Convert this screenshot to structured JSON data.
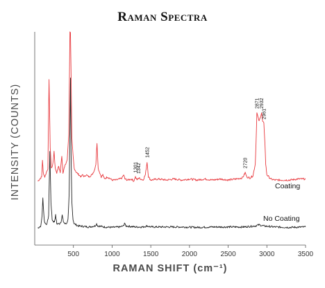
{
  "chart_data": {
    "type": "line",
    "title": "Raman Spectra",
    "xlabel": "RAMAN SHIFT (cm⁻¹)",
    "ylabel": "INTENSITY (COUNTS)",
    "xlim": [
      0,
      3500
    ],
    "ylim": [
      0,
      100
    ],
    "x_ticks": [
      500,
      1000,
      1500,
      2000,
      2500,
      3000,
      3500
    ],
    "y_ticks": [],
    "grid": false,
    "series": [
      {
        "name": "Coating",
        "color": "#e8383d",
        "baseline": 30,
        "points": [
          [
            40,
            30
          ],
          [
            90,
            32
          ],
          [
            100,
            40
          ],
          [
            110,
            34
          ],
          [
            130,
            32
          ],
          [
            150,
            34
          ],
          [
            170,
            36
          ],
          [
            185,
            78
          ],
          [
            200,
            46
          ],
          [
            215,
            36
          ],
          [
            235,
            38
          ],
          [
            250,
            44
          ],
          [
            265,
            36
          ],
          [
            285,
            34
          ],
          [
            310,
            37
          ],
          [
            330,
            34
          ],
          [
            350,
            42
          ],
          [
            365,
            34
          ],
          [
            380,
            36
          ],
          [
            400,
            38
          ],
          [
            420,
            40
          ],
          [
            440,
            52
          ],
          [
            455,
            100
          ],
          [
            462,
            100
          ],
          [
            470,
            80
          ],
          [
            480,
            50
          ],
          [
            495,
            42
          ],
          [
            510,
            36
          ],
          [
            540,
            34
          ],
          [
            570,
            33
          ],
          [
            600,
            32
          ],
          [
            620,
            33
          ],
          [
            640,
            32
          ],
          [
            665,
            33
          ],
          [
            700,
            32
          ],
          [
            740,
            33
          ],
          [
            770,
            35
          ],
          [
            790,
            38
          ],
          [
            805,
            48
          ],
          [
            820,
            36
          ],
          [
            840,
            34
          ],
          [
            860,
            32
          ],
          [
            880,
            33
          ],
          [
            900,
            31
          ],
          [
            940,
            32
          ],
          [
            980,
            31
          ],
          [
            1000,
            30.5
          ],
          [
            1050,
            30.5
          ],
          [
            1100,
            31
          ],
          [
            1130,
            31.5
          ],
          [
            1150,
            33
          ],
          [
            1165,
            31
          ],
          [
            1200,
            30.5
          ],
          [
            1250,
            31
          ],
          [
            1280,
            30
          ],
          [
            1301,
            32
          ],
          [
            1320,
            30.5
          ],
          [
            1342,
            31.5
          ],
          [
            1370,
            31
          ],
          [
            1400,
            30.5
          ],
          [
            1430,
            33
          ],
          [
            1452,
            39
          ],
          [
            1470,
            32
          ],
          [
            1500,
            30.5
          ],
          [
            1600,
            31
          ],
          [
            1700,
            30.5
          ],
          [
            1800,
            31
          ],
          [
            1900,
            30.5
          ],
          [
            2000,
            31
          ],
          [
            2100,
            30.5
          ],
          [
            2200,
            31
          ],
          [
            2300,
            30.5
          ],
          [
            2400,
            31
          ],
          [
            2500,
            30.5
          ],
          [
            2600,
            31
          ],
          [
            2680,
            31.5
          ],
          [
            2700,
            32.5
          ],
          [
            2720,
            34
          ],
          [
            2740,
            32
          ],
          [
            2780,
            31.5
          ],
          [
            2820,
            32.5
          ],
          [
            2850,
            38
          ],
          [
            2860,
            48
          ],
          [
            2871,
            62
          ],
          [
            2885,
            60
          ],
          [
            2900,
            58
          ],
          [
            2915,
            60
          ],
          [
            2932,
            62
          ],
          [
            2945,
            58
          ],
          [
            2961,
            57
          ],
          [
            2975,
            48
          ],
          [
            2985,
            38
          ],
          [
            3000,
            33
          ],
          [
            3050,
            31
          ],
          [
            3100,
            30.5
          ],
          [
            3200,
            30.5
          ],
          [
            3300,
            30.5
          ],
          [
            3400,
            31
          ],
          [
            3500,
            31
          ]
        ]
      },
      {
        "name": "No Coating",
        "color": "#222222",
        "baseline": 8,
        "points": [
          [
            40,
            8
          ],
          [
            80,
            9
          ],
          [
            95,
            14
          ],
          [
            105,
            22
          ],
          [
            115,
            16
          ],
          [
            125,
            11
          ],
          [
            140,
            10
          ],
          [
            160,
            10
          ],
          [
            180,
            14
          ],
          [
            195,
            44
          ],
          [
            210,
            20
          ],
          [
            225,
            12
          ],
          [
            240,
            11
          ],
          [
            255,
            11
          ],
          [
            270,
            14
          ],
          [
            285,
            10
          ],
          [
            300,
            10
          ],
          [
            320,
            10
          ],
          [
            340,
            11
          ],
          [
            355,
            14
          ],
          [
            370,
            11
          ],
          [
            390,
            10
          ],
          [
            410,
            10
          ],
          [
            430,
            12
          ],
          [
            445,
            24
          ],
          [
            455,
            55
          ],
          [
            462,
            78
          ],
          [
            470,
            42
          ],
          [
            480,
            20
          ],
          [
            495,
            12
          ],
          [
            510,
            10
          ],
          [
            560,
            9
          ],
          [
            620,
            8.8
          ],
          [
            700,
            8.5
          ],
          [
            780,
            9
          ],
          [
            800,
            10
          ],
          [
            815,
            9
          ],
          [
            900,
            8.5
          ],
          [
            1000,
            8.3
          ],
          [
            1100,
            8.5
          ],
          [
            1150,
            9
          ],
          [
            1160,
            10.5
          ],
          [
            1175,
            9
          ],
          [
            1300,
            8.5
          ],
          [
            1400,
            8.5
          ],
          [
            1452,
            9
          ],
          [
            1500,
            8.5
          ],
          [
            1700,
            8.5
          ],
          [
            1900,
            8.5
          ],
          [
            2100,
            8.3
          ],
          [
            2300,
            8.5
          ],
          [
            2500,
            8.5
          ],
          [
            2700,
            8.5
          ],
          [
            2850,
            9
          ],
          [
            2900,
            9.5
          ],
          [
            2950,
            9
          ],
          [
            3100,
            8.5
          ],
          [
            3300,
            8.3
          ],
          [
            3500,
            8.5
          ]
        ]
      }
    ],
    "annotations": [
      {
        "text": "1301",
        "x": 1301,
        "y": 32
      },
      {
        "text": "1342",
        "x": 1342,
        "y": 31.5
      },
      {
        "text": "1452",
        "x": 1452,
        "y": 39
      },
      {
        "text": "2720",
        "x": 2720,
        "y": 34
      },
      {
        "text": "2871",
        "x": 2871,
        "y": 62
      },
      {
        "text": "2932",
        "x": 2932,
        "y": 62
      },
      {
        "text": "2961",
        "x": 2961,
        "y": 57
      }
    ]
  }
}
